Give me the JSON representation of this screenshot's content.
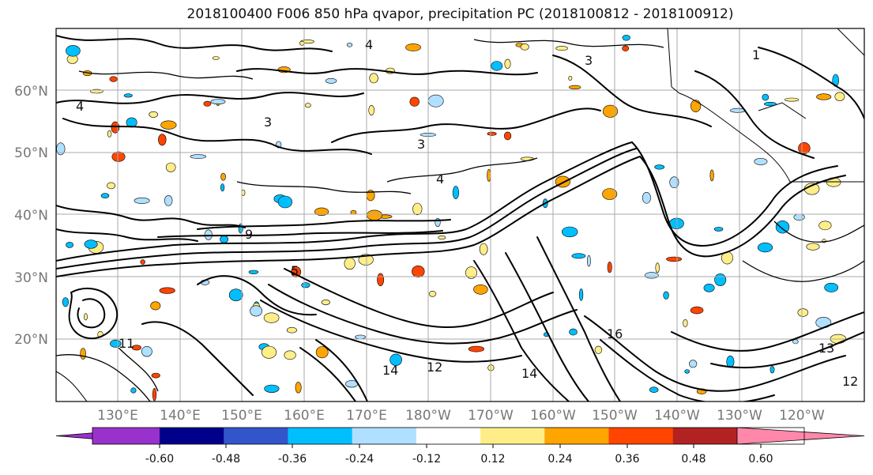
{
  "title": "2018100400 F006 850 hPa qvapor, precipitation PC (2018100812 - 2018100912)",
  "lat_labels": [
    "60°N",
    "50°N",
    "40°N",
    "30°N",
    "20°N"
  ],
  "lon_labels": [
    "130°E",
    "140°E",
    "150°E",
    "160°E",
    "170°E",
    "180°W",
    "170°W",
    "160°W",
    "150°W",
    "140°W",
    "130°W",
    "120°W"
  ],
  "colorbar": {
    "colors": [
      "#9932CC",
      "#00008B",
      "#3355CC",
      "#00BFFF",
      "#B0E0FF",
      "#FFFFFF",
      "#FFEE88",
      "#FFA500",
      "#FF4500",
      "#B22222",
      "#FF88AA"
    ],
    "tick_labels": [
      "-0.60",
      "-0.48",
      "-0.36",
      "-0.24",
      "-0.12",
      "0.12",
      "0.24",
      "0.36",
      "0.48",
      "0.60"
    ]
  },
  "contour_labels": [
    "4",
    "3",
    "3",
    "1",
    "4",
    "3",
    "4",
    "5",
    "14",
    "12",
    "16",
    "13",
    "12",
    "14",
    "9",
    "11"
  ],
  "shading_colors": {
    "positive_light": "#FFEE88",
    "positive_mid": "#FFA500",
    "positive_strong": "#FF4500",
    "negative_light": "#B0E0FF",
    "negative_mid": "#00BFFF",
    "negative_strong": "#3355CC"
  }
}
